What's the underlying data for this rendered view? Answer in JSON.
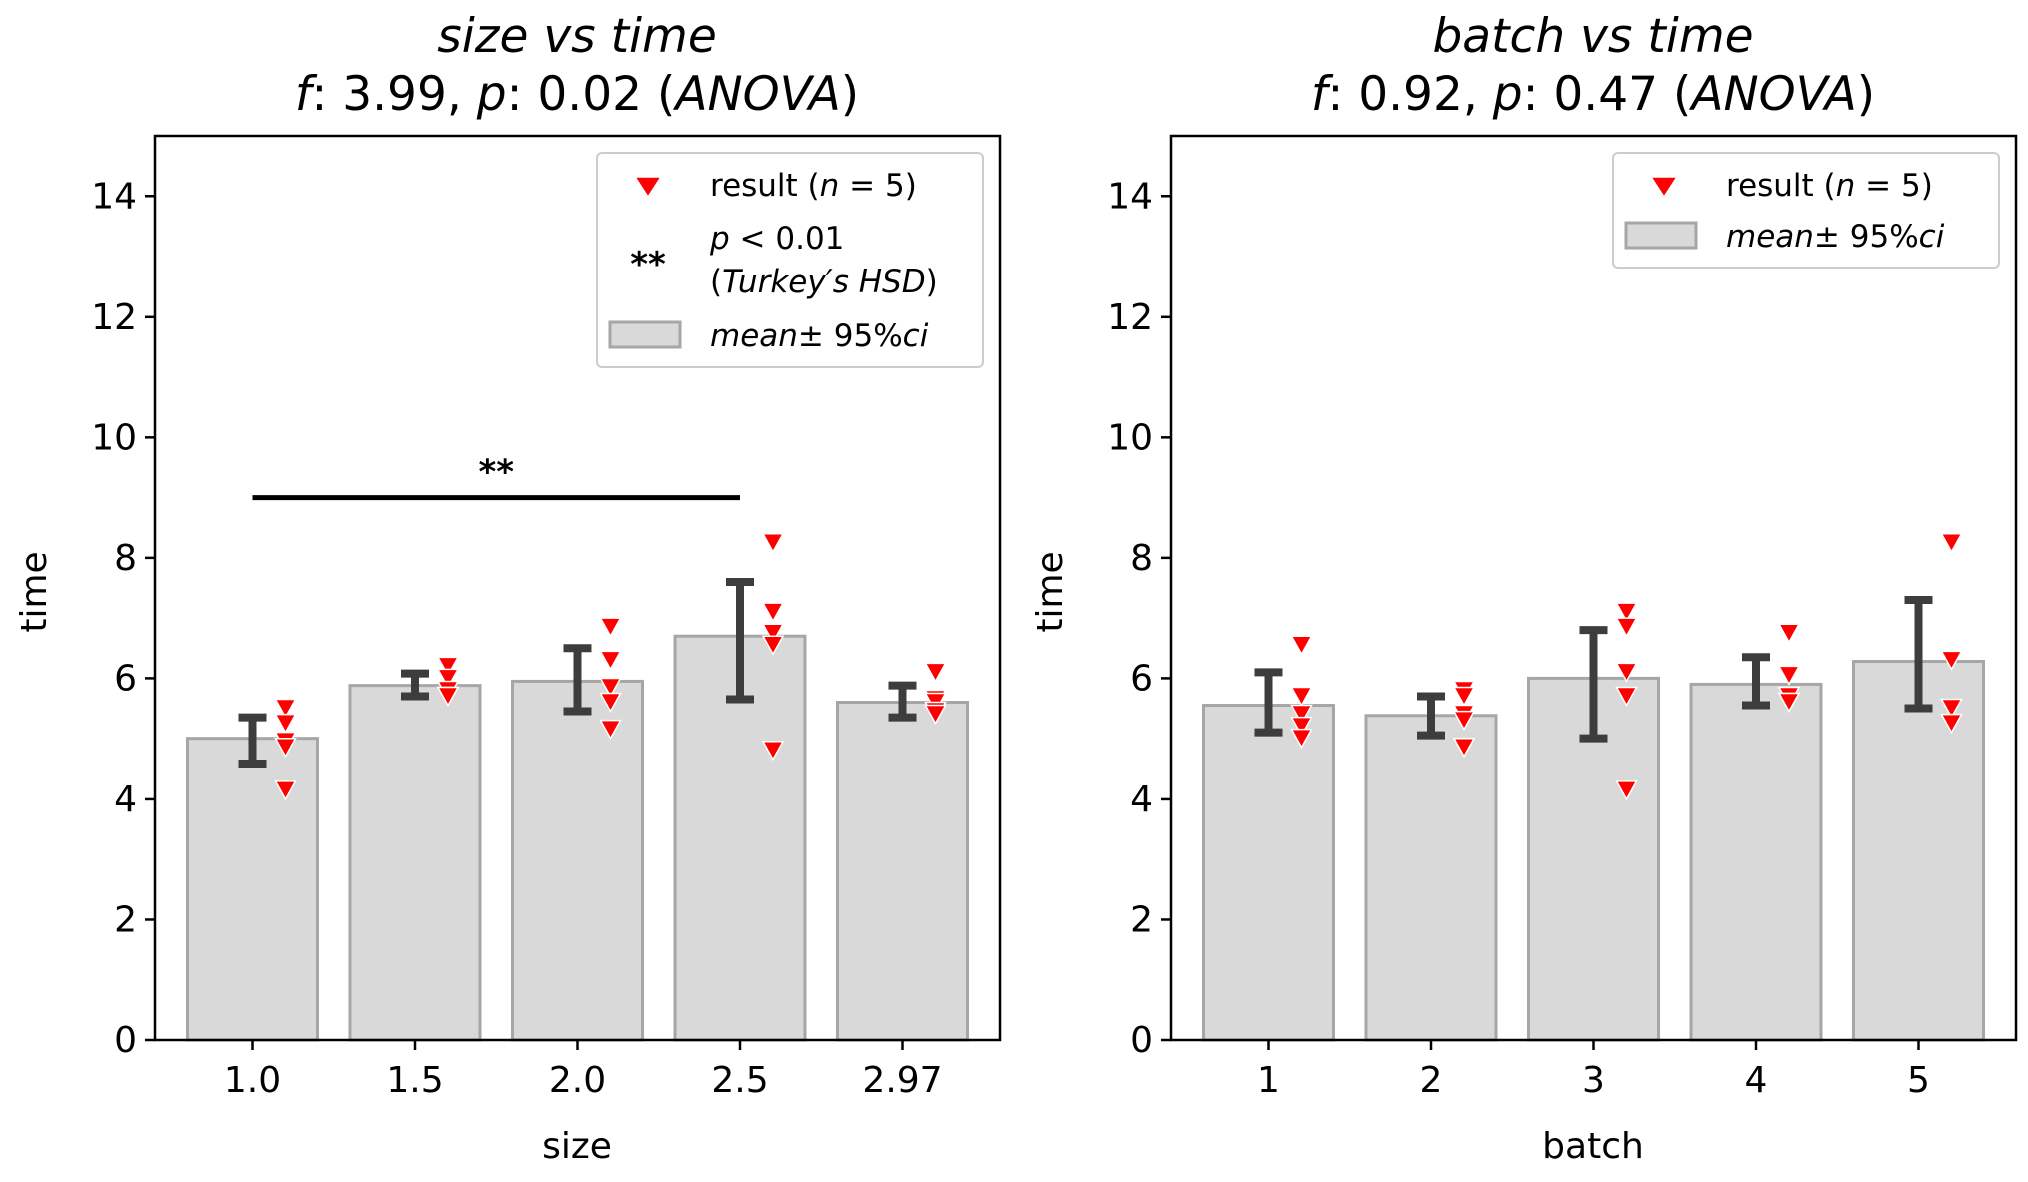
{
  "chart_data": [
    {
      "type": "bar",
      "title": "size vs time",
      "subtitle": {
        "f_label": "f",
        "f_value": "3.99",
        "p_label": "p",
        "p_value": "0.02",
        "test": "ANOVA"
      },
      "xlabel": "size",
      "ylabel": "time",
      "ylim": [
        0,
        15
      ],
      "yticks": [
        "0",
        "2",
        "4",
        "6",
        "8",
        "10",
        "12",
        "14"
      ],
      "categories": [
        "1.0",
        "1.5",
        "2.0",
        "2.5",
        "2.97"
      ],
      "values": [
        5.0,
        5.88,
        5.95,
        6.7,
        5.6
      ],
      "ci_low": [
        4.58,
        5.7,
        5.45,
        5.65,
        5.35
      ],
      "ci_high": [
        5.35,
        6.08,
        6.5,
        7.6,
        5.88
      ],
      "points": [
        [
          5.5,
          5.25,
          4.95,
          4.85,
          4.15
        ],
        [
          6.2,
          6.0,
          5.8,
          5.7,
          5.7
        ],
        [
          6.85,
          6.3,
          5.85,
          5.6,
          5.15
        ],
        [
          8.25,
          7.1,
          6.75,
          6.55,
          4.8
        ],
        [
          6.1,
          5.65,
          5.6,
          5.45,
          5.4
        ]
      ],
      "significance": [
        {
          "from": "1.0",
          "to": "2.5",
          "y": 9.0,
          "label": "**"
        }
      ],
      "legend": {
        "placement": "top-right",
        "result_prefix": "result (",
        "result_n": "n",
        "result_eq": " = 5)",
        "sig_p": "p",
        "sig_cmp": " < 0.01",
        "sig_open": "(",
        "sig_test": "Turkey′s HSD",
        "sig_close": ")",
        "sig_marker": "**",
        "mean_label": "mean",
        "ci_label": "±  95%",
        "ci_suffix": "ci"
      },
      "grid": false
    },
    {
      "type": "bar",
      "title": "batch vs time",
      "subtitle": {
        "f_label": "f",
        "f_value": "0.92",
        "p_label": "p",
        "p_value": "0.47",
        "test": "ANOVA"
      },
      "xlabel": "batch",
      "ylabel": "time",
      "ylim": [
        0,
        15
      ],
      "yticks": [
        "0",
        "2",
        "4",
        "6",
        "8",
        "10",
        "12",
        "14"
      ],
      "categories": [
        "1",
        "2",
        "3",
        "4",
        "5"
      ],
      "values": [
        5.55,
        5.38,
        6.0,
        5.9,
        6.28
      ],
      "ci_low": [
        5.1,
        5.05,
        5.0,
        5.55,
        5.5
      ],
      "ci_high": [
        6.1,
        5.7,
        6.8,
        6.35,
        7.3
      ],
      "points": [
        [
          6.55,
          5.7,
          5.4,
          5.2,
          5.0
        ],
        [
          5.8,
          5.7,
          5.4,
          5.3,
          4.85
        ],
        [
          7.1,
          6.85,
          6.1,
          5.7,
          4.15
        ],
        [
          6.75,
          6.05,
          5.7,
          5.6,
          5.6
        ],
        [
          8.25,
          6.3,
          5.5,
          5.25,
          5.25
        ]
      ],
      "significance": [],
      "legend": {
        "placement": "top-right",
        "result_prefix": "result (",
        "result_n": "n",
        "result_eq": " = 5)",
        "mean_label": "mean",
        "ci_label": "±  95%",
        "ci_suffix": "ci"
      },
      "grid": false
    }
  ],
  "colors": {
    "bar_fill": "#d9d9d9",
    "bar_edge": "#a6a6a6",
    "errorbar": "#3d3d3d",
    "marker": "#ff0000",
    "sig_line": "#000000"
  }
}
